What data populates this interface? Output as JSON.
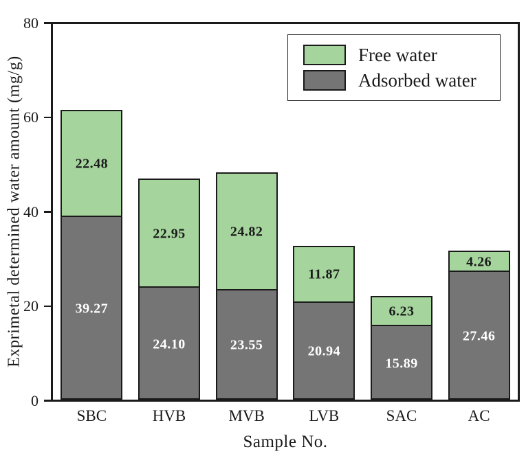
{
  "figure": {
    "background": "#ffffff",
    "frame_color": "#1a1a1a"
  },
  "chart_data": {
    "type": "bar",
    "stacked": true,
    "title": "",
    "xlabel": "Sample No.",
    "ylabel": "Exprimetal determined water amount (mg/g)",
    "categories": [
      "SBC",
      "HVB",
      "MVB",
      "LVB",
      "SAC",
      "AC"
    ],
    "series": [
      {
        "name": "Adsorbed water",
        "color": "#757575",
        "label_color": "#ffffff",
        "values": [
          39.27,
          24.1,
          23.55,
          20.94,
          15.89,
          27.46
        ],
        "labels": [
          "39.27",
          "24.10",
          "23.55",
          "20.94",
          "15.89",
          "27.46"
        ]
      },
      {
        "name": "Free water",
        "color": "#a5d49d",
        "label_color": "#1a1a1a",
        "values": [
          22.48,
          22.95,
          24.82,
          11.87,
          6.23,
          4.26
        ],
        "labels": [
          "22.48",
          "22.95",
          "24.82",
          "11.87",
          "6.23",
          "4.26"
        ]
      }
    ],
    "totals": [
      61.75,
      47.05,
      48.37,
      32.81,
      22.12,
      31.72
    ],
    "ylim": [
      0,
      80
    ],
    "yticks": [
      "80",
      "60",
      "40",
      "20",
      "0"
    ],
    "ytick_values": [
      80,
      60,
      40,
      20,
      0
    ],
    "grid": false,
    "legend_position": "top-right",
    "legend_order": [
      "Free water",
      "Adsorbed water"
    ],
    "bar_labels": true
  }
}
